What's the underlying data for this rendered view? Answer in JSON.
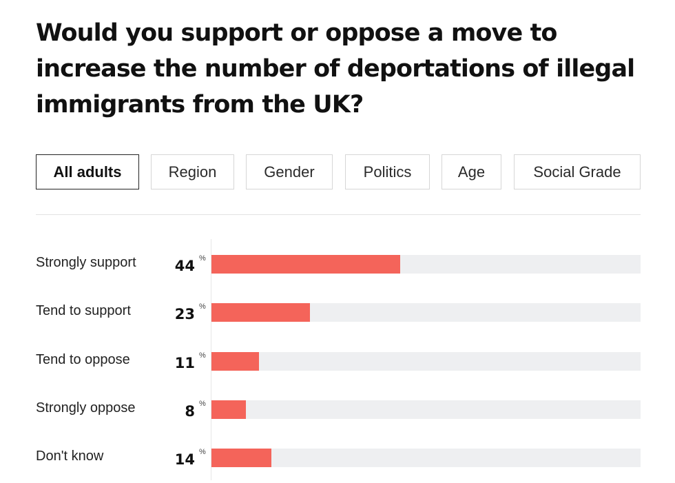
{
  "title": "Would you support or oppose a move to increase the number of deportations of illegal immigrants from the UK?",
  "tabs": [
    {
      "label": "All adults",
      "active": true
    },
    {
      "label": "Region",
      "active": false
    },
    {
      "label": "Gender",
      "active": false
    },
    {
      "label": "Politics",
      "active": false
    },
    {
      "label": "Age",
      "active": false
    },
    {
      "label": "Social Grade",
      "active": false
    }
  ],
  "colors": {
    "bar": "#f4645a",
    "track": "#eeeff1"
  },
  "chart_data": {
    "type": "bar",
    "orientation": "horizontal",
    "title": "Would you support or oppose a move to increase the number of deportations of illegal immigrants from the UK?",
    "unit": "%",
    "xlim": [
      0,
      100
    ],
    "grid": false,
    "categories": [
      "Strongly support",
      "Tend to support",
      "Tend to oppose",
      "Strongly oppose",
      "Don't know"
    ],
    "values": [
      44,
      23,
      11,
      8,
      14
    ]
  }
}
